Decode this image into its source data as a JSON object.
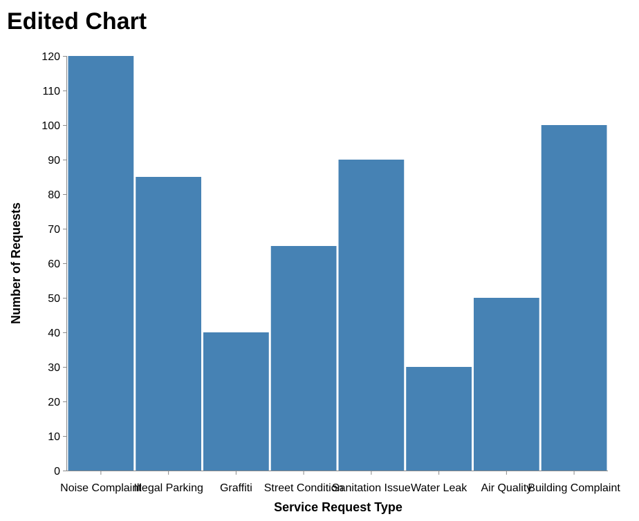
{
  "chart_data": {
    "type": "bar",
    "title": "Edited Chart",
    "xlabel": "Service Request Type",
    "ylabel": "Number of Requests",
    "categories": [
      "Noise Complaint",
      "Illegal Parking",
      "Graffiti",
      "Street Condition",
      "Sanitation Issue",
      "Water Leak",
      "Air Quality",
      "Building Complaint"
    ],
    "values": [
      120,
      85,
      40,
      65,
      90,
      30,
      50,
      100
    ],
    "ylim": [
      0,
      120
    ],
    "yticks": [
      0,
      10,
      20,
      30,
      40,
      50,
      60,
      70,
      80,
      90,
      100,
      110,
      120
    ],
    "grid": false,
    "legend": "none",
    "bar_color": "#4682b4"
  }
}
